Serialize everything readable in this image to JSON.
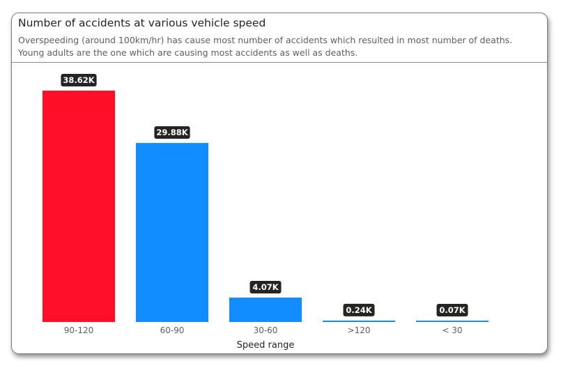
{
  "header": {
    "title": "Number of accidents at various vehicle speed",
    "subtitle": "Overspeeding (around 100km/hr) has cause most number of accidents which resulted in most number of deaths. Young adults are the one which are causing most accidents as well as deaths."
  },
  "colors": {
    "highlight": "#ff1028",
    "bar": "#118dff",
    "label_bg": "#252423",
    "label_text": "#ffffff",
    "axis_text": "#605e5c",
    "axis_title": "#252423"
  },
  "chart_data": {
    "type": "bar",
    "title": "Number of accidents at various vehicle speed",
    "xlabel": "Speed range",
    "ylabel": "",
    "categories": [
      "90-120",
      "60-90",
      "30-60",
      ">120",
      "< 30"
    ],
    "values": [
      38.62,
      29.88,
      4.07,
      0.24,
      0.07
    ],
    "value_unit": "K",
    "data_labels": [
      "38.62K",
      "29.88K",
      "4.07K",
      "0.24K",
      "0.07K"
    ],
    "highlighted_category": "90-120",
    "ylim": [
      0,
      38.62
    ],
    "grid": false,
    "legend": "none"
  }
}
